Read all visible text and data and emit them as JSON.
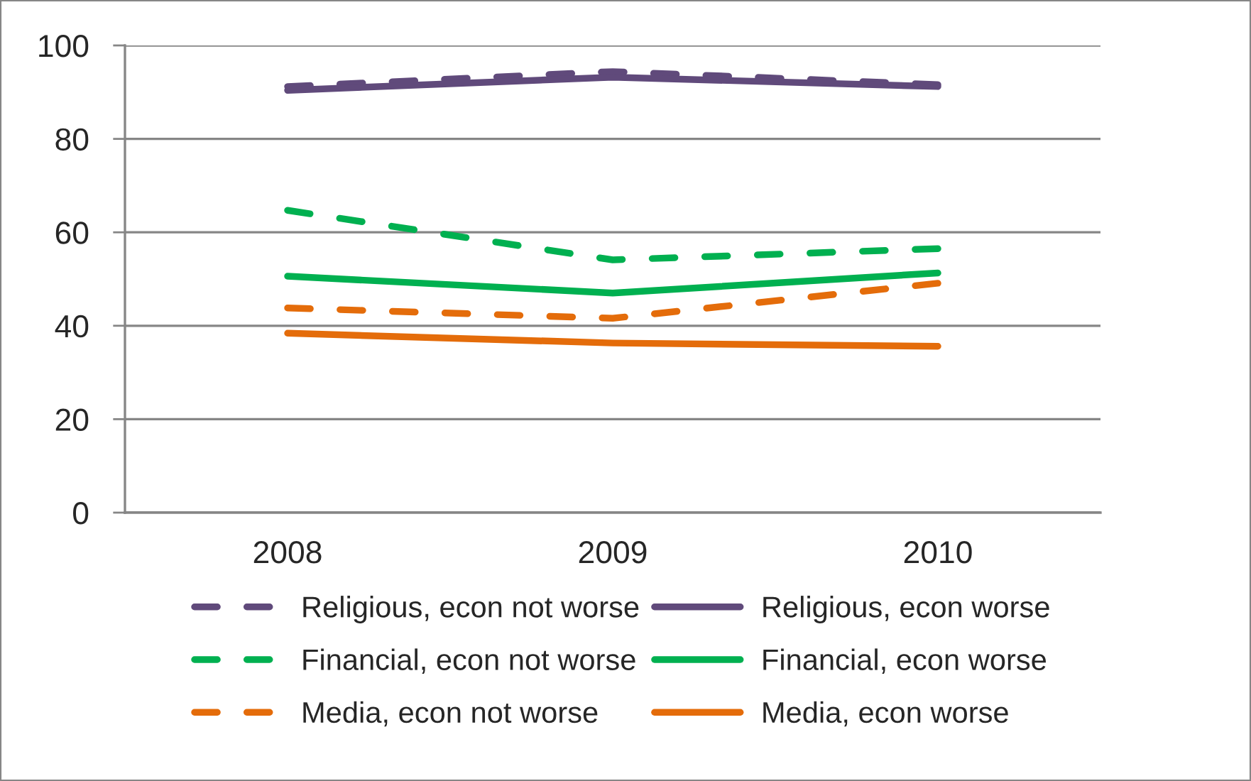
{
  "chart_data": {
    "type": "line",
    "categories": [
      "2008",
      "2009",
      "2010"
    ],
    "series": [
      {
        "name": "Religious, econ not worse",
        "color": "#604a7b",
        "line_style": "dashed",
        "values": [
          91.2,
          94.4,
          91.6
        ]
      },
      {
        "name": "Religious, econ worse",
        "color": "#604a7b",
        "line_style": "solid",
        "values": [
          90.4,
          93.2,
          91.2
        ]
      },
      {
        "name": "Financial, econ not worse",
        "color": "#00b050",
        "line_style": "dashed",
        "values": [
          64.7,
          54.1,
          56.5
        ]
      },
      {
        "name": "Financial, econ worse",
        "color": "#00b050",
        "line_style": "solid",
        "values": [
          50.6,
          47.0,
          51.3
        ]
      },
      {
        "name": "Media, econ not worse",
        "color": "#e46c0a",
        "line_style": "dashed",
        "values": [
          43.8,
          41.6,
          49.1
        ]
      },
      {
        "name": "Media, econ worse",
        "color": "#e46c0a",
        "line_style": "solid",
        "values": [
          38.4,
          36.3,
          35.6
        ]
      }
    ],
    "ylim": [
      0,
      100
    ],
    "yticks": [
      0,
      20,
      40,
      60,
      80,
      100
    ],
    "grid": "y",
    "legend": "bottom"
  }
}
